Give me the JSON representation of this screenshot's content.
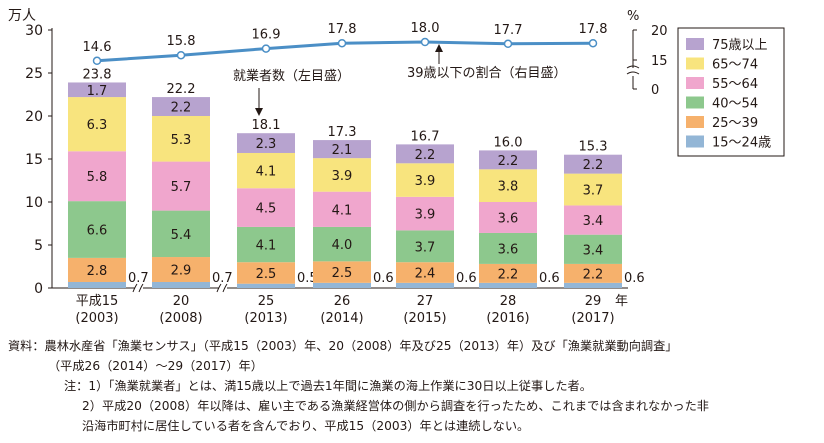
{
  "chart_data": {
    "type": "bar",
    "stacked": true,
    "left_axis_unit": "万人",
    "right_axis_unit": "%",
    "ylim": [
      0,
      30
    ],
    "y_ticks": [
      "0",
      "5",
      "10",
      "15",
      "20",
      "25",
      "30"
    ],
    "y2_ticks": [
      "0",
      "15",
      "20"
    ],
    "categories": [
      {
        "year": "平成15",
        "western": "(2003)"
      },
      {
        "year": "20",
        "western": "(2008)"
      },
      {
        "year": "25",
        "western": "(2013)"
      },
      {
        "year": "26",
        "western": "(2014)"
      },
      {
        "year": "27",
        "western": "(2015)"
      },
      {
        "year": "28",
        "western": "(2016)"
      },
      {
        "year": "29",
        "western": "(2017)"
      }
    ],
    "year_suffix": "年",
    "series": [
      {
        "name": "15〜24歳",
        "color": "#93b6d6",
        "values": [
          0.7,
          0.7,
          0.5,
          0.6,
          0.6,
          0.6,
          0.6
        ],
        "labels": [
          "0.7",
          "0.7",
          "0.5",
          "0.6",
          "0.6",
          "0.6",
          "0.6"
        ]
      },
      {
        "name": "25〜39",
        "color": "#f6b16c",
        "values": [
          2.8,
          2.9,
          2.5,
          2.5,
          2.4,
          2.2,
          2.2
        ],
        "labels": [
          "2.8",
          "2.9",
          "2.5",
          "2.5",
          "2.4",
          "2.2",
          "2.2"
        ]
      },
      {
        "name": "40〜54",
        "color": "#8dc88d",
        "values": [
          6.6,
          5.4,
          4.1,
          4.0,
          3.7,
          3.6,
          3.4
        ],
        "labels": [
          "6.6",
          "5.4",
          "4.1",
          "4.0",
          "3.7",
          "3.6",
          "3.4"
        ]
      },
      {
        "name": "55〜64",
        "color": "#f0a6cd",
        "values": [
          5.8,
          5.7,
          4.5,
          4.1,
          3.9,
          3.6,
          3.4
        ],
        "labels": [
          "5.8",
          "5.7",
          "4.5",
          "4.1",
          "3.9",
          "3.6",
          "3.4"
        ]
      },
      {
        "name": "65〜74",
        "color": "#f8e47e",
        "values": [
          6.3,
          5.3,
          4.1,
          3.9,
          3.9,
          3.8,
          3.7
        ],
        "labels": [
          "6.3",
          "5.3",
          "4.1",
          "3.9",
          "3.9",
          "3.8",
          "3.7"
        ]
      },
      {
        "name": "75歳以上",
        "color": "#b7a3cf",
        "values": [
          1.7,
          2.2,
          2.3,
          2.1,
          2.2,
          2.2,
          2.2
        ],
        "labels": [
          "1.7",
          "2.2",
          "2.3",
          "2.1",
          "2.2",
          "2.2",
          "2.2"
        ]
      }
    ],
    "totals": [
      "23.8",
      "22.2",
      "18.1",
      "17.3",
      "16.7",
      "16.0",
      "15.3"
    ],
    "line_series": {
      "name": "39歳以下の割合（右目盛）",
      "color": "#4b8fc6",
      "values": [
        14.6,
        15.8,
        16.9,
        17.8,
        18.0,
        17.7,
        17.8
      ],
      "labels": [
        "14.6",
        "15.8",
        "16.9",
        "17.8",
        "18.0",
        "17.7",
        "17.8"
      ]
    },
    "annotations": {
      "bars_label": "就業者数（左目盛）",
      "line_label": "39歳以下の割合（右目盛）"
    },
    "legend_position": "right"
  },
  "notes": {
    "source": "資料：農林水産省「漁業センサス」（平成15（2003）年、20（2008）年及び25（2013）年）及び「漁業就業動向調査」",
    "source_cont": "（平成26（2014）～29（2017）年）",
    "note1": "注：1）「漁業就業者」とは、満15歳以上で過去1年間に漁業の海上作業に30日以上従事した者。",
    "note2a": "2）平成20（2008）年以降は、雇い主である漁業経営体の側から調査を行ったため、これまでは含まれなかった非",
    "note2b": "沿海市町村に居住している者を含んでおり、平成15（2003）年とは連続しない。"
  }
}
